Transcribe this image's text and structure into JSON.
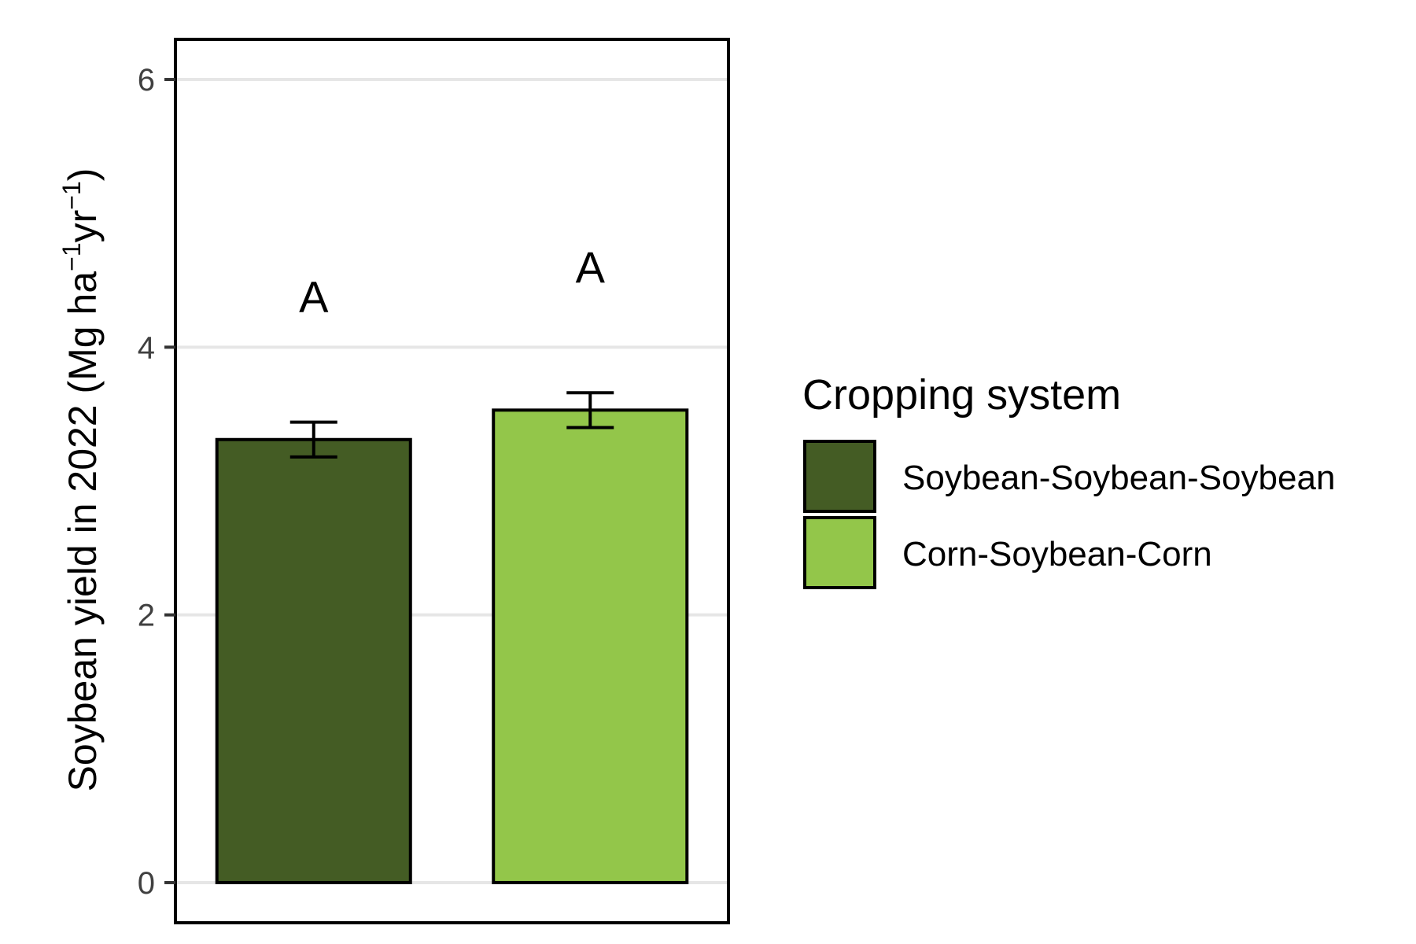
{
  "chart_data": {
    "type": "bar",
    "categories": [
      "Soybean-Soybean-Soybean",
      "Corn-Soybean-Corn"
    ],
    "series": [
      {
        "values": [
          3.31,
          3.53
        ],
        "error": [
          0.13,
          0.13
        ],
        "colors": [
          "#445c24",
          "#93c64a"
        ]
      }
    ],
    "significance_letters": [
      "A",
      "A"
    ],
    "ylabel": {
      "main": "Soybean yield in 2022 (Mg ha",
      "sup1": "−1",
      "mid": "yr",
      "sup2": "−1",
      "end": ")"
    },
    "yticks": [
      0,
      2,
      4,
      6
    ],
    "ylim": [
      -0.3,
      6.3
    ],
    "grid": "horizontal-major",
    "legend": {
      "title": "Cropping system",
      "placement": "right",
      "items": [
        {
          "label": "Soybean-Soybean-Soybean",
          "color": "#445c24"
        },
        {
          "label": "Corn-Soybean-Corn",
          "color": "#93c64a"
        }
      ]
    },
    "colors": {
      "grid": "#e6e6e6",
      "outline": "#000000"
    }
  }
}
